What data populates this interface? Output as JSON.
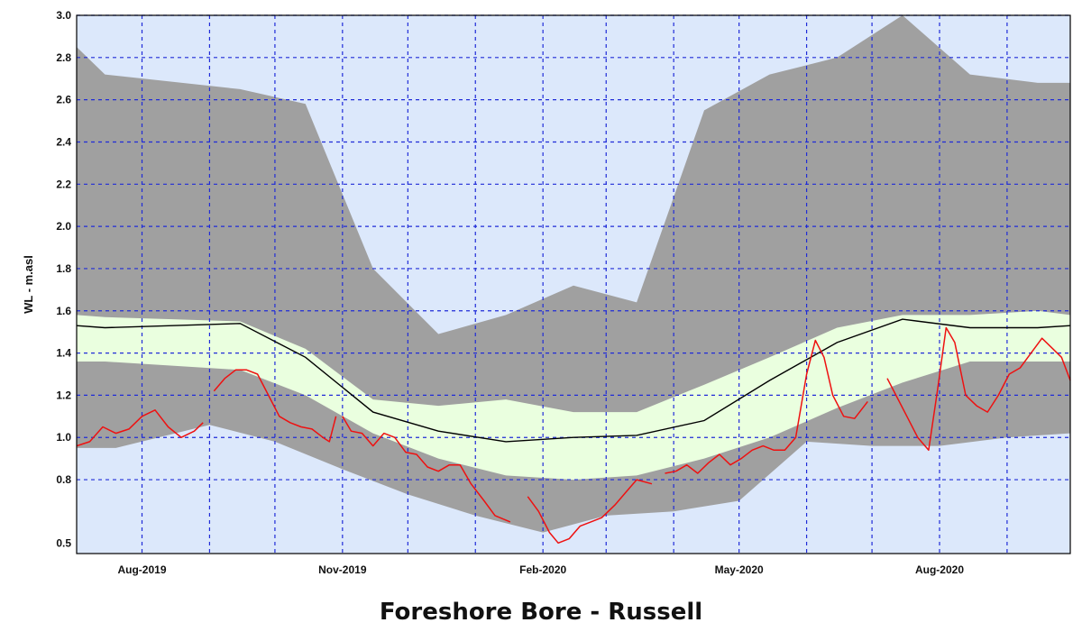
{
  "chart_data": {
    "type": "area",
    "title": "Foreshore Bore - Russell",
    "ylabel": "WL - m.asl",
    "xlabel": "",
    "ylim": [
      0.45,
      3.0
    ],
    "xlim": [
      "2019-07-02",
      "2020-09-30"
    ],
    "grid": true,
    "y_ticks": [
      "0.5",
      "0.8",
      "1.0",
      "1.2",
      "1.4",
      "1.6",
      "1.8",
      "2.0",
      "2.2",
      "2.4",
      "2.6",
      "2.8",
      "3.0"
    ],
    "x_ticks": [
      {
        "label": "Aug-2019",
        "date": "2019-08-01"
      },
      {
        "label": "Nov-2019",
        "date": "2019-11-01"
      },
      {
        "label": "Feb-2020",
        "date": "2020-02-01"
      },
      {
        "label": "May-2020",
        "date": "2020-05-01"
      },
      {
        "label": "Aug-2020",
        "date": "2020-08-01"
      }
    ],
    "colors": {
      "plot_background": "#dce8fb",
      "grid": "#1f2bd8",
      "outer_band": "#a0a0a0",
      "inner_band": "#eaffdf",
      "median": "#000000",
      "observed": "#ee1111"
    },
    "series": [
      {
        "kind": "band",
        "upper_x": [
          "2019-07-02",
          "2019-07-15",
          "2019-09-15",
          "2019-10-15",
          "2019-11-15",
          "2019-12-15",
          "2020-01-15",
          "2020-02-15",
          "2020-03-15",
          "2020-04-15",
          "2020-05-15",
          "2020-06-15",
          "2020-07-15",
          "2020-08-15",
          "2020-09-15",
          "2020-09-30"
        ],
        "upper": [
          2.85,
          2.72,
          2.65,
          2.58,
          1.8,
          1.49,
          1.58,
          1.72,
          1.64,
          2.55,
          2.72,
          2.8,
          3.0,
          2.72,
          2.68,
          2.68
        ],
        "lower_x": [
          "2019-07-02",
          "2019-07-20",
          "2019-09-01",
          "2019-10-01",
          "2019-11-01",
          "2019-12-01",
          "2020-01-01",
          "2020-02-01",
          "2020-03-01",
          "2020-04-01",
          "2020-05-01",
          "2020-06-01",
          "2020-07-01",
          "2020-08-01",
          "2020-09-01",
          "2020-09-30"
        ],
        "lower": [
          0.95,
          0.95,
          1.06,
          0.98,
          0.85,
          0.73,
          0.63,
          0.55,
          0.63,
          0.65,
          0.7,
          0.98,
          0.96,
          0.96,
          1.0,
          1.02
        ]
      },
      {
        "kind": "band",
        "upper_x": [
          "2019-07-02",
          "2019-07-15",
          "2019-09-15",
          "2019-10-15",
          "2019-11-15",
          "2019-12-15",
          "2020-01-15",
          "2020-02-15",
          "2020-03-15",
          "2020-04-15",
          "2020-05-15",
          "2020-06-15",
          "2020-07-15",
          "2020-08-15",
          "2020-09-15",
          "2020-09-30"
        ],
        "upper": [
          1.58,
          1.57,
          1.55,
          1.42,
          1.18,
          1.15,
          1.18,
          1.12,
          1.12,
          1.25,
          1.38,
          1.52,
          1.58,
          1.58,
          1.6,
          1.58
        ],
        "lower_x": [
          "2019-07-02",
          "2019-07-15",
          "2019-09-15",
          "2019-10-15",
          "2019-11-15",
          "2019-12-15",
          "2020-01-15",
          "2020-02-15",
          "2020-03-15",
          "2020-04-15",
          "2020-05-15",
          "2020-06-15",
          "2020-07-15",
          "2020-08-15",
          "2020-09-15",
          "2020-09-30"
        ],
        "lower": [
          1.36,
          1.36,
          1.32,
          1.2,
          1.02,
          0.9,
          0.82,
          0.8,
          0.82,
          0.9,
          1.0,
          1.14,
          1.26,
          1.36,
          1.36,
          1.36
        ]
      },
      {
        "kind": "line",
        "x": [
          "2019-07-02",
          "2019-07-15",
          "2019-09-15",
          "2019-10-15",
          "2019-11-15",
          "2019-12-15",
          "2020-01-15",
          "2020-02-15",
          "2020-03-15",
          "2020-04-15",
          "2020-05-15",
          "2020-06-15",
          "2020-07-15",
          "2020-08-15",
          "2020-09-15",
          "2020-09-30"
        ],
        "values": [
          1.53,
          1.52,
          1.54,
          1.38,
          1.12,
          1.03,
          0.98,
          1.0,
          1.01,
          1.08,
          1.27,
          1.45,
          1.56,
          1.52,
          1.52,
          1.53
        ]
      },
      {
        "kind": "observed",
        "segments": [
          {
            "x": [
              "2019-07-02",
              "2019-07-08",
              "2019-07-14",
              "2019-07-20",
              "2019-07-26",
              "2019-08-01",
              "2019-08-07",
              "2019-08-13",
              "2019-08-19",
              "2019-08-25",
              "2019-08-29"
            ],
            "values": [
              0.96,
              0.98,
              1.05,
              1.02,
              1.04,
              1.1,
              1.13,
              1.05,
              1.0,
              1.03,
              1.07
            ]
          },
          {
            "x": [
              "2019-09-03",
              "2019-09-08",
              "2019-09-13",
              "2019-09-18",
              "2019-09-23",
              "2019-09-28",
              "2019-10-03",
              "2019-10-08",
              "2019-10-13",
              "2019-10-18",
              "2019-10-23",
              "2019-10-26",
              "2019-10-29"
            ],
            "values": [
              1.22,
              1.28,
              1.32,
              1.32,
              1.3,
              1.2,
              1.1,
              1.07,
              1.05,
              1.04,
              1.0,
              0.98,
              1.1
            ]
          },
          {
            "x": [
              "2019-11-01",
              "2019-11-05",
              "2019-11-10",
              "2019-11-15",
              "2019-11-20",
              "2019-11-25",
              "2019-11-30",
              "2019-12-05",
              "2019-12-10",
              "2019-12-15",
              "2019-12-20",
              "2019-12-25",
              "2019-12-30",
              "2020-01-05",
              "2020-01-10",
              "2020-01-17"
            ],
            "values": [
              1.1,
              1.03,
              1.02,
              0.96,
              1.02,
              1.0,
              0.93,
              0.92,
              0.86,
              0.84,
              0.87,
              0.87,
              0.78,
              0.7,
              0.63,
              0.6
            ]
          },
          {
            "x": [
              "2020-01-25",
              "2020-01-30",
              "2020-02-04",
              "2020-02-08",
              "2020-02-13",
              "2020-02-18",
              "2020-02-23",
              "2020-02-28",
              "2020-03-05",
              "2020-03-10",
              "2020-03-15",
              "2020-03-22"
            ],
            "values": [
              0.72,
              0.65,
              0.55,
              0.5,
              0.52,
              0.58,
              0.6,
              0.62,
              0.68,
              0.74,
              0.8,
              0.78
            ]
          },
          {
            "x": [
              "2020-03-28",
              "2020-04-02",
              "2020-04-07",
              "2020-04-12",
              "2020-04-17",
              "2020-04-22",
              "2020-04-27",
              "2020-05-02",
              "2020-05-07",
              "2020-05-12",
              "2020-05-17",
              "2020-05-22",
              "2020-05-27",
              "2020-06-01",
              "2020-06-05",
              "2020-06-09",
              "2020-06-13",
              "2020-06-18",
              "2020-06-23",
              "2020-06-29"
            ],
            "values": [
              0.83,
              0.84,
              0.87,
              0.83,
              0.88,
              0.92,
              0.87,
              0.9,
              0.94,
              0.96,
              0.94,
              0.94,
              1.0,
              1.3,
              1.46,
              1.38,
              1.2,
              1.1,
              1.09,
              1.17
            ]
          },
          {
            "x": [
              "2020-07-08",
              "2020-07-12",
              "2020-07-17",
              "2020-07-22",
              "2020-07-27",
              "2020-07-31",
              "2020-08-04",
              "2020-08-08",
              "2020-08-13",
              "2020-08-18",
              "2020-08-23",
              "2020-08-28",
              "2020-09-02",
              "2020-09-07",
              "2020-09-12",
              "2020-09-17",
              "2020-09-22",
              "2020-09-26",
              "2020-09-30"
            ],
            "values": [
              1.28,
              1.2,
              1.1,
              1.0,
              0.94,
              1.22,
              1.52,
              1.45,
              1.2,
              1.15,
              1.12,
              1.2,
              1.3,
              1.33,
              1.4,
              1.47,
              1.42,
              1.38,
              1.27
            ]
          }
        ]
      }
    ]
  }
}
